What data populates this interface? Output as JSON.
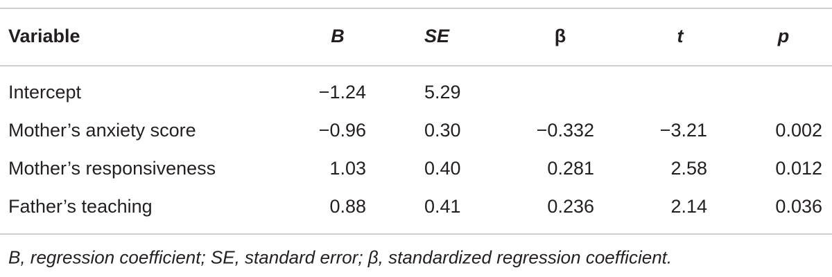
{
  "table": {
    "header": [
      "Variable",
      "B",
      "SE",
      "β",
      "t",
      "p"
    ],
    "rows": [
      [
        "Intercept",
        "−1.24",
        "5.29",
        null,
        null,
        null
      ],
      [
        "Mother’s anxiety score",
        "−0.96",
        "0.30",
        "−0.332",
        "−3.21",
        "0.002"
      ],
      [
        "Mother’s responsiveness",
        "1.03",
        "0.40",
        "0.281",
        "2.58",
        "0.012"
      ],
      [
        "Father’s teaching",
        "0.88",
        "0.41",
        "0.236",
        "2.14",
        "0.036"
      ]
    ],
    "footnote": "B, regression coefficient; SE, standard error; β, standardized regression coefficient."
  }
}
